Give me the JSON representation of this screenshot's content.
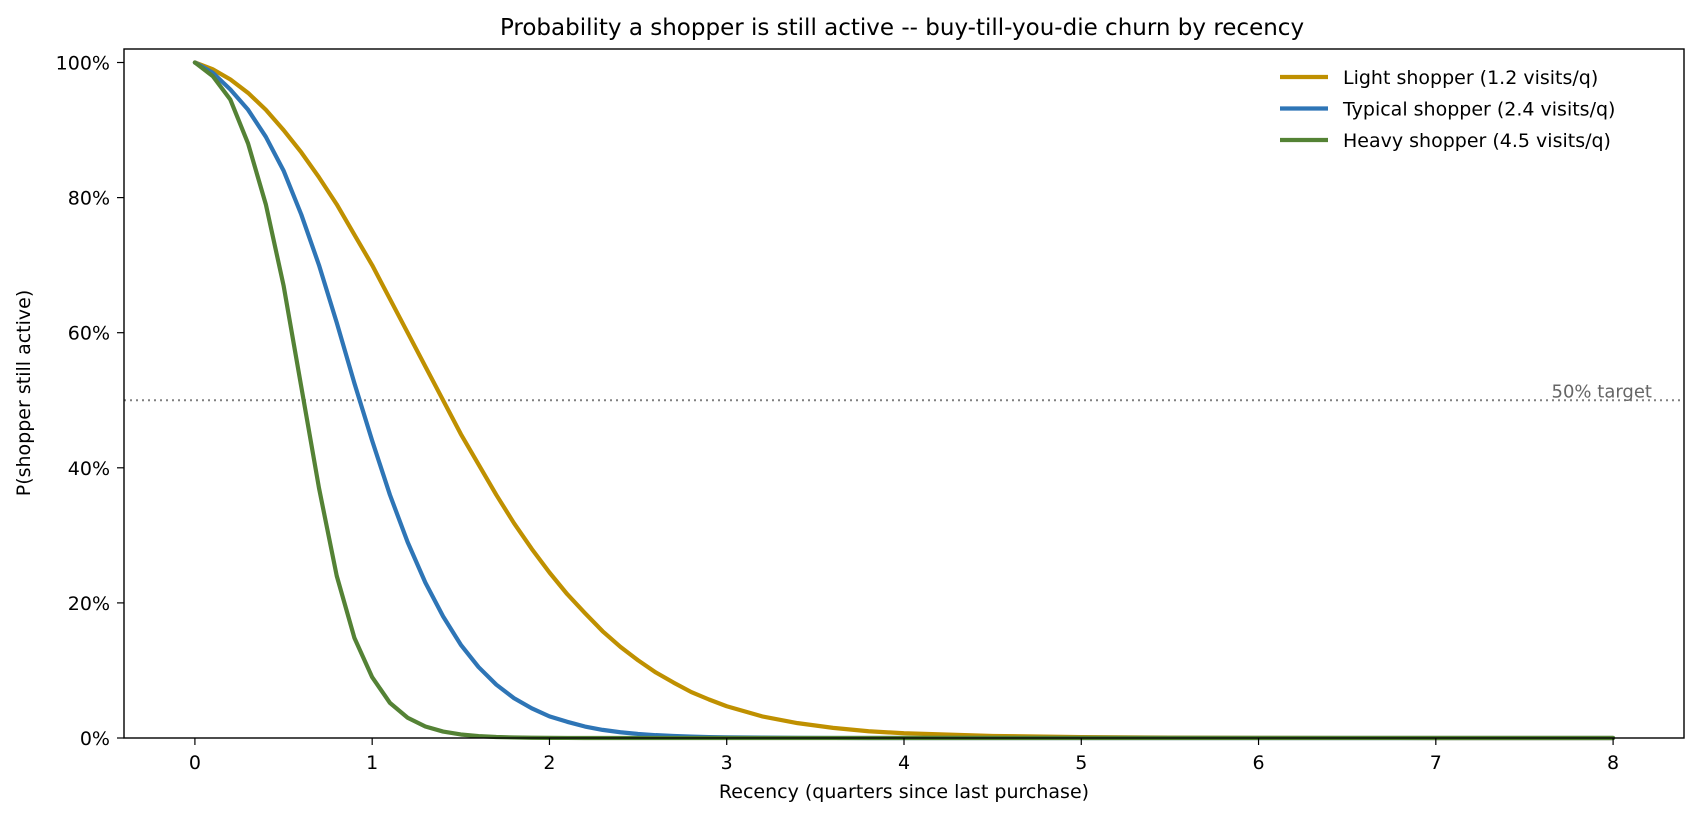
{
  "chart_data": {
    "type": "line",
    "title": "Probability a shopper is still active -- buy-till-you-die churn by recency",
    "xlabel": "Recency  (quarters since last purchase)",
    "ylabel": "P(shopper still active)",
    "xlim": [
      -0.4,
      8.4
    ],
    "ylim": [
      0,
      1.02
    ],
    "x_ticks": [
      0,
      1,
      2,
      3,
      4,
      5,
      6,
      7,
      8
    ],
    "x_tick_labels": [
      "0",
      "1",
      "2",
      "3",
      "4",
      "5",
      "6",
      "7",
      "8"
    ],
    "y_ticks": [
      0,
      0.2,
      0.4,
      0.6,
      0.8,
      1.0
    ],
    "y_tick_labels": [
      "0%",
      "20%",
      "40%",
      "60%",
      "80%",
      "100%"
    ],
    "grid": false,
    "legend_position": "top-right",
    "x": [
      0,
      0.1,
      0.2,
      0.3,
      0.4,
      0.5,
      0.6,
      0.7,
      0.8,
      0.9,
      1.0,
      1.1,
      1.2,
      1.3,
      1.4,
      1.5,
      1.6,
      1.7,
      1.8,
      1.9,
      2.0,
      2.1,
      2.2,
      2.3,
      2.4,
      2.5,
      2.6,
      2.7,
      2.8,
      2.9,
      3.0,
      3.2,
      3.4,
      3.6,
      3.8,
      4.0,
      4.5,
      5.0,
      5.5,
      6.0,
      6.5,
      7.0,
      7.5,
      8.0
    ],
    "series": [
      {
        "name": "Light shopper (1.2 visits/q)",
        "color": "#bf9000",
        "values": [
          1.0,
          0.99,
          0.975,
          0.955,
          0.93,
          0.9,
          0.867,
          0.83,
          0.79,
          0.745,
          0.7,
          0.65,
          0.6,
          0.55,
          0.5,
          0.45,
          0.405,
          0.36,
          0.318,
          0.28,
          0.245,
          0.213,
          0.185,
          0.158,
          0.135,
          0.115,
          0.097,
          0.082,
          0.068,
          0.057,
          0.047,
          0.032,
          0.022,
          0.015,
          0.01,
          0.007,
          0.003,
          0.0013,
          0.0006,
          0.0003,
          0.0001,
          5e-05,
          2e-05,
          1e-05
        ]
      },
      {
        "name": "Typical shopper (2.4 visits/q)",
        "color": "#2e75b6",
        "values": [
          1.0,
          0.985,
          0.96,
          0.93,
          0.89,
          0.84,
          0.775,
          0.7,
          0.615,
          0.525,
          0.44,
          0.36,
          0.29,
          0.23,
          0.18,
          0.138,
          0.105,
          0.079,
          0.059,
          0.044,
          0.032,
          0.024,
          0.017,
          0.012,
          0.0085,
          0.006,
          0.0042,
          0.003,
          0.002,
          0.0014,
          0.001,
          0.0005,
          0.0002,
          0.0001,
          5e-05,
          2e-05,
          0,
          0,
          0,
          0,
          0,
          0,
          0,
          0
        ]
      },
      {
        "name": "Heavy shopper (4.5 visits/q)",
        "color": "#548235",
        "values": [
          1.0,
          0.98,
          0.945,
          0.88,
          0.79,
          0.67,
          0.52,
          0.37,
          0.24,
          0.148,
          0.09,
          0.052,
          0.03,
          0.017,
          0.0095,
          0.0052,
          0.0028,
          0.0015,
          0.0008,
          0.0004,
          0.0002,
          0.0001,
          5e-05,
          0,
          0,
          0,
          0,
          0,
          0,
          0,
          0,
          0,
          0,
          0,
          0,
          0,
          0,
          0,
          0,
          0,
          0,
          0,
          0,
          0
        ]
      }
    ],
    "reference_line": {
      "y": 0.5,
      "label": "50% target",
      "color": "#808080",
      "style": "dotted"
    }
  }
}
